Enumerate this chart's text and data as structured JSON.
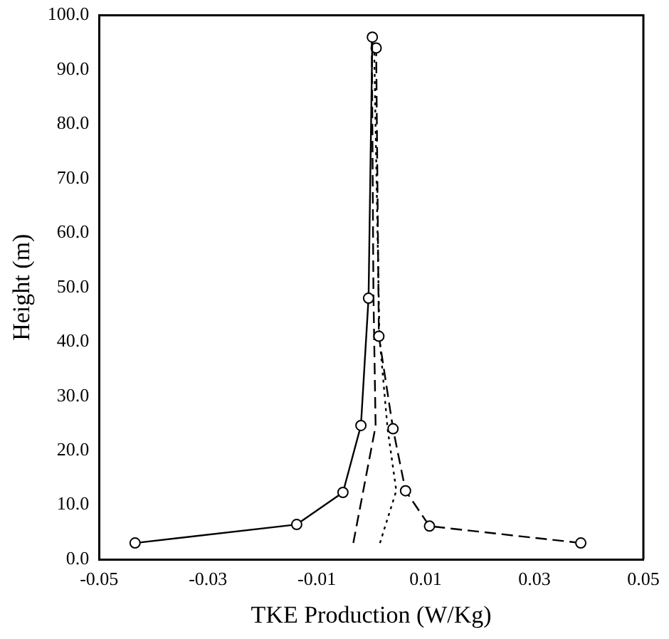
{
  "chart_data": {
    "type": "line",
    "xlabel": "TKE Production (W/Kg)",
    "ylabel": "Height (m)",
    "xlim": [
      -0.05,
      0.05
    ],
    "xticks": [
      {
        "value": -0.05,
        "label": "-0.05"
      },
      {
        "value": -0.03,
        "label": "-0.03"
      },
      {
        "value": -0.01,
        "label": "-0.01"
      },
      {
        "value": 0.01,
        "label": "0.01"
      },
      {
        "value": 0.03,
        "label": "0.03"
      },
      {
        "value": 0.05,
        "label": "0.05"
      }
    ],
    "ylim": [
      0,
      100
    ],
    "yticks": [
      {
        "value": 0,
        "label": "0.0"
      },
      {
        "value": 10,
        "label": "10.0"
      },
      {
        "value": 20,
        "label": "20.0"
      },
      {
        "value": 30,
        "label": "30.0"
      },
      {
        "value": 40,
        "label": "40.0"
      },
      {
        "value": 50,
        "label": "50.0"
      },
      {
        "value": 60,
        "label": "60.0"
      },
      {
        "value": 70,
        "label": "70.0"
      },
      {
        "value": 80,
        "label": "80.0"
      },
      {
        "value": 90,
        "label": "90.0"
      },
      {
        "value": 100,
        "label": "100.0"
      }
    ],
    "grid": false,
    "legend": false,
    "series": [
      {
        "color": "#000000",
        "marker": "circle",
        "line_style": "solid",
        "x": [
          -0.0434,
          -0.0137,
          -0.0052,
          -0.0019,
          -0.0005,
          0.0002
        ],
        "values": [
          3,
          6.4,
          12.3,
          24.6,
          48,
          96
        ]
      },
      {
        "color": "#000000",
        "marker": "circle",
        "line_style": "dashed",
        "x": [
          0.0385,
          0.0107,
          0.0063,
          0.004,
          0.0014,
          0.0009
        ],
        "values": [
          3,
          6.1,
          12.6,
          24,
          41,
          94
        ]
      },
      {
        "color": "#000000",
        "marker": "none",
        "line_style": "dashed",
        "x": [
          -0.0033,
          0.0008,
          0.0004,
          0.0001
        ],
        "values": [
          3,
          24.5,
          48.7,
          96
        ]
      },
      {
        "color": "#000000",
        "marker": "none",
        "line_style": "dotted",
        "x": [
          0.0016,
          0.0046,
          0.003,
          0.0015,
          0.0005
        ],
        "values": [
          3,
          12.6,
          24,
          41,
          96
        ]
      }
    ]
  }
}
